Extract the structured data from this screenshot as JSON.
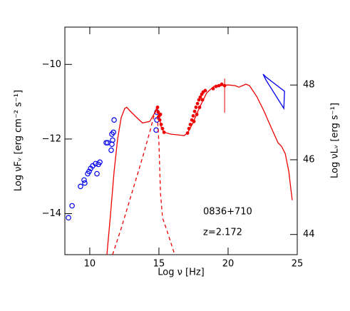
{
  "chart_data": {
    "type": "scatter",
    "xlabel": "Log ν [Hz]",
    "ylabel": "Log νFᵥ [erg cm⁻² s⁻¹]",
    "y2label": "Log νLᵥ [erg s⁻¹]",
    "annotations": [
      "0836+710",
      "z=2.172"
    ],
    "xlim": [
      8.2,
      25
    ],
    "xticks": [
      10,
      15,
      20,
      25
    ],
    "ylim": [
      -15.1,
      -9.0
    ],
    "yticks": [
      {
        "value": -10,
        "label": "−10"
      },
      {
        "value": -12,
        "label": "−12"
      },
      {
        "value": -14,
        "label": "−14"
      }
    ],
    "y2lim": [
      43.46,
      49.55
    ],
    "y2ticks": [
      44,
      46,
      48
    ],
    "series": [
      {
        "style": "open-circle",
        "color": "#0000ee",
        "x": [
          8.46,
          8.72,
          9.33,
          9.59,
          9.64,
          9.85,
          9.95,
          10.06,
          10.21,
          10.42,
          10.52,
          10.62,
          10.73,
          11.19,
          11.29,
          11.55,
          11.6,
          11.6,
          11.71,
          11.76,
          11.65,
          14.8,
          14.85,
          14.85
        ],
        "y": [
          -14.11,
          -13.79,
          -13.27,
          -13.1,
          -13.18,
          -12.93,
          -12.87,
          -12.79,
          -12.72,
          -12.66,
          -12.93,
          -12.68,
          -12.62,
          -12.1,
          -12.1,
          -12.3,
          -12.14,
          -11.87,
          -11.82,
          -11.49,
          -12.03,
          -11.76,
          -11.49,
          -11.28
        ]
      },
      {
        "style": "filled-circle",
        "color": "#ee0000",
        "x": [
          14.9,
          14.95,
          15.0,
          15.06,
          15.16,
          15.26,
          15.37,
          15.11,
          17.07,
          17.17,
          17.27,
          17.38,
          17.48,
          17.58,
          17.68,
          17.79,
          17.89,
          17.99,
          18.1,
          18.2,
          18.35,
          17.53,
          17.74,
          17.94,
          18.15,
          18.92,
          19.13,
          19.33,
          19.54
        ],
        "y": [
          -11.15,
          -11.28,
          -11.39,
          -11.49,
          -11.61,
          -11.72,
          -11.82,
          -11.34,
          -11.84,
          -11.72,
          -11.61,
          -11.49,
          -11.38,
          -11.26,
          -11.15,
          -11.05,
          -10.95,
          -10.88,
          -10.8,
          -10.74,
          -10.7,
          -11.53,
          -11.34,
          -11.15,
          -10.95,
          -10.65,
          -10.59,
          -10.57,
          -10.53
        ]
      },
      {
        "style": "errorbar",
        "color": "#ee0000",
        "x": [
          19.75
        ],
        "y": [
          -10.57
        ],
        "ylow": [
          -11.3
        ],
        "yhigh": [
          -10.38
        ]
      },
      {
        "style": "solid",
        "color": "#ee0000",
        "x": [
          11.24,
          11.5,
          11.76,
          12.01,
          12.27,
          12.53,
          12.68,
          12.89,
          13.3,
          13.81,
          14.33,
          14.64,
          14.85,
          15.0,
          15.16,
          15.37,
          15.88,
          16.4,
          16.81,
          17.07,
          17.43,
          17.94,
          18.46,
          18.97,
          19.49,
          20.0,
          20.52,
          20.78,
          21.29,
          21.55,
          22.07,
          22.58,
          23.1,
          23.61,
          23.87,
          24.13,
          24.39,
          24.54,
          24.64
        ],
        "y": [
          -15.1,
          -14.02,
          -12.87,
          -12.01,
          -11.43,
          -11.18,
          -11.15,
          -11.24,
          -11.39,
          -11.57,
          -11.53,
          -11.34,
          -11.15,
          -11.34,
          -11.68,
          -11.82,
          -11.87,
          -11.89,
          -11.91,
          -11.84,
          -11.59,
          -11.15,
          -10.76,
          -10.59,
          -10.57,
          -10.55,
          -10.57,
          -10.61,
          -10.53,
          -10.57,
          -10.86,
          -11.24,
          -11.68,
          -12.1,
          -12.2,
          -12.39,
          -12.87,
          -13.35,
          -13.64
        ]
      },
      {
        "style": "dashed",
        "color": "#ee0000",
        "x": [
          11.65,
          12.27,
          13.05,
          13.82,
          14.33,
          14.64,
          14.85,
          15.0,
          15.11,
          15.26,
          15.62,
          16.14
        ],
        "y": [
          -15.1,
          -14.4,
          -13.44,
          -12.49,
          -11.82,
          -11.38,
          -11.18,
          -12.1,
          -13.44,
          -14.11,
          -14.5,
          -15.1
        ]
      },
      {
        "style": "polygon",
        "color": "#0000ee",
        "x": [
          22.53,
          22.74,
          24.08,
          24.03,
          22.74
        ],
        "y": [
          -10.26,
          -10.34,
          -10.72,
          -11.18,
          -10.42
        ]
      }
    ]
  }
}
